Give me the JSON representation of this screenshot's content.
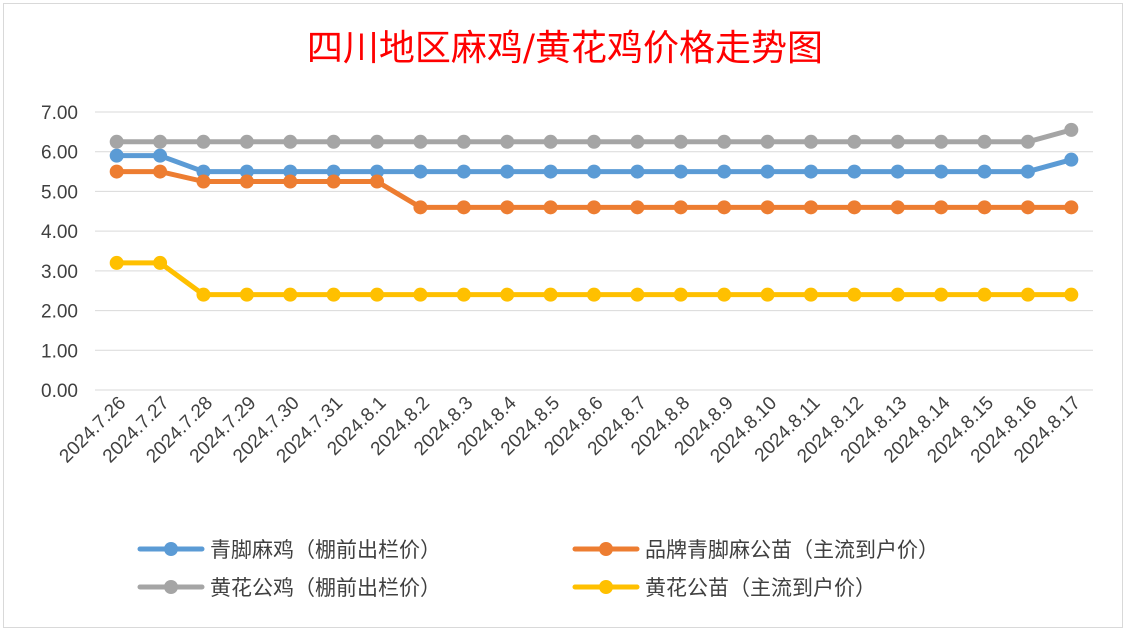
{
  "chart_data": {
    "type": "line",
    "title": "四川地区麻鸡/黄花鸡价格走势图",
    "xlabel": "",
    "ylabel": "",
    "ylim": [
      0,
      7
    ],
    "yticks": [
      "0.00",
      "1.00",
      "2.00",
      "3.00",
      "4.00",
      "5.00",
      "6.00",
      "7.00"
    ],
    "grid": "horizontal",
    "legend_position": "bottom",
    "categories": [
      "2024.7.26",
      "2024.7.27",
      "2024.7.28",
      "2024.7.29",
      "2024.7.30",
      "2024.7.31",
      "2024.8.1",
      "2024.8.2",
      "2024.8.3",
      "2024.8.4",
      "2024.8.5",
      "2024.8.6",
      "2024.8.7",
      "2024.8.8",
      "2024.8.9",
      "2024.8.10",
      "2024.8.11",
      "2024.8.12",
      "2024.8.13",
      "2024.8.14",
      "2024.8.15",
      "2024.8.16",
      "2024.8.17"
    ],
    "series": [
      {
        "name": "青脚麻鸡（棚前出栏价）",
        "color": "#5b9bd5",
        "values": [
          5.9,
          5.9,
          5.5,
          5.5,
          5.5,
          5.5,
          5.5,
          5.5,
          5.5,
          5.5,
          5.5,
          5.5,
          5.5,
          5.5,
          5.5,
          5.5,
          5.5,
          5.5,
          5.5,
          5.5,
          5.5,
          5.5,
          5.8
        ]
      },
      {
        "name": "品牌青脚麻公苗（主流到户价）",
        "color": "#ed7d31",
        "values": [
          5.5,
          5.5,
          5.25,
          5.25,
          5.25,
          5.25,
          5.25,
          4.6,
          4.6,
          4.6,
          4.6,
          4.6,
          4.6,
          4.6,
          4.6,
          4.6,
          4.6,
          4.6,
          4.6,
          4.6,
          4.6,
          4.6,
          4.6
        ]
      },
      {
        "name": "黄花公鸡（棚前出栏价）",
        "color": "#a5a5a5",
        "values": [
          6.25,
          6.25,
          6.25,
          6.25,
          6.25,
          6.25,
          6.25,
          6.25,
          6.25,
          6.25,
          6.25,
          6.25,
          6.25,
          6.25,
          6.25,
          6.25,
          6.25,
          6.25,
          6.25,
          6.25,
          6.25,
          6.25,
          6.55
        ]
      },
      {
        "name": "黄花公苗（主流到户价）",
        "color": "#ffc000",
        "values": [
          3.2,
          3.2,
          2.4,
          2.4,
          2.4,
          2.4,
          2.4,
          2.4,
          2.4,
          2.4,
          2.4,
          2.4,
          2.4,
          2.4,
          2.4,
          2.4,
          2.4,
          2.4,
          2.4,
          2.4,
          2.4,
          2.4,
          2.4
        ]
      }
    ]
  },
  "colors": {
    "grid": "#d9d9d9",
    "axis_text": "#404040",
    "title": "#ff0000"
  }
}
